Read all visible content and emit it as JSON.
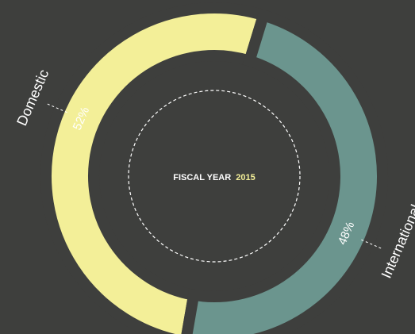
{
  "chart_data": {
    "type": "donut",
    "categories": [
      "Domestic",
      "International"
    ],
    "values": [
      52,
      48
    ],
    "value_labels": [
      "52%",
      "48%"
    ],
    "colors": [
      "#f3ef98",
      "#6b958e"
    ],
    "center_label": "FISCAL YEAR",
    "center_value": "2015"
  }
}
